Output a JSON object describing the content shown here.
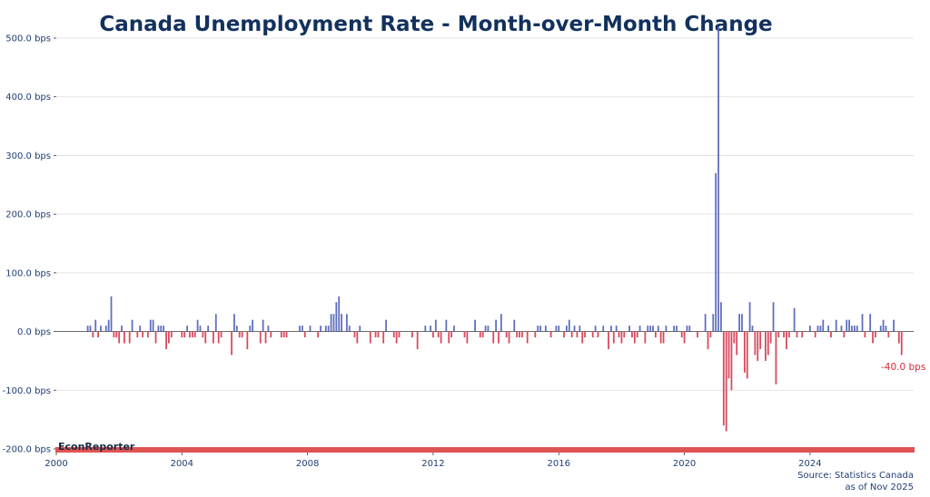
{
  "colors": {
    "positive": "#5f6fbd",
    "negative": "#d84a5c",
    "grid": "#dcdcdc",
    "baseline": "#555555",
    "brandBar": "#e05353",
    "title": "#12315e"
  },
  "brand": "EconReporter",
  "source": {
    "line1": "Source: Statistics Canada",
    "line2": "as of Nov 2025"
  },
  "chart_data": {
    "type": "bar",
    "title": "Canada Unemployment Rate - Month-over-Month Change",
    "xlabel": "",
    "ylabel": "",
    "ylim": [
      -200,
      500
    ],
    "xlim": [
      2000.0,
      2027.3
    ],
    "y_ticks": [
      -200,
      -100,
      0,
      100,
      200,
      300,
      400,
      500
    ],
    "y_tick_labels": [
      "-200.0 bps",
      "-100.0 bps",
      "0.0 bps",
      "100.0 bps",
      "200.0 bps",
      "300.0 bps",
      "400.0 bps",
      "500.0 bps"
    ],
    "x_ticks": [
      2000,
      2004,
      2008,
      2012,
      2016,
      2020,
      2024
    ],
    "x_tick_labels": [
      "2000",
      "2004",
      "2008",
      "2012",
      "2016",
      "2020",
      "2024"
    ],
    "last_label": "-40.0 bps",
    "start": "2001-01",
    "values": [
      10,
      10,
      -10,
      20,
      -10,
      10,
      0,
      10,
      20,
      60,
      -10,
      -10,
      -20,
      10,
      -20,
      0,
      -20,
      20,
      0,
      -10,
      10,
      -10,
      0,
      -10,
      20,
      20,
      -20,
      10,
      10,
      10,
      -30,
      -20,
      -10,
      0,
      0,
      0,
      -10,
      -10,
      10,
      -10,
      -10,
      -10,
      20,
      10,
      -10,
      -20,
      10,
      0,
      -20,
      30,
      -20,
      -10,
      0,
      0,
      0,
      -40,
      30,
      10,
      -10,
      -10,
      0,
      -30,
      10,
      20,
      0,
      0,
      -20,
      20,
      -20,
      10,
      -10,
      0,
      0,
      0,
      -10,
      -10,
      -10,
      0,
      0,
      0,
      0,
      10,
      10,
      -10,
      0,
      10,
      0,
      0,
      -10,
      10,
      0,
      10,
      10,
      30,
      30,
      50,
      60,
      30,
      0,
      30,
      10,
      0,
      -10,
      -20,
      10,
      0,
      0,
      0,
      -20,
      0,
      -10,
      -10,
      0,
      -20,
      20,
      0,
      0,
      -10,
      -20,
      -10,
      0,
      0,
      0,
      0,
      -10,
      0,
      -30,
      0,
      0,
      10,
      0,
      10,
      -10,
      20,
      -10,
      -20,
      0,
      20,
      -20,
      -10,
      10,
      0,
      0,
      0,
      -10,
      -20,
      0,
      0,
      20,
      0,
      -10,
      -10,
      10,
      10,
      0,
      -20,
      20,
      -20,
      30,
      0,
      -10,
      -20,
      0,
      20,
      -10,
      -10,
      -10,
      0,
      -20,
      0,
      0,
      -10,
      10,
      10,
      0,
      10,
      0,
      -10,
      0,
      10,
      10,
      0,
      -10,
      10,
      20,
      -10,
      10,
      -10,
      10,
      -20,
      -10,
      0,
      0,
      -10,
      10,
      -10,
      0,
      10,
      0,
      -30,
      10,
      -20,
      10,
      -10,
      -20,
      -10,
      0,
      10,
      -10,
      -20,
      -10,
      10,
      0,
      -20,
      10,
      10,
      10,
      -10,
      10,
      -20,
      -20,
      10,
      0,
      0,
      10,
      10,
      0,
      -10,
      -20,
      10,
      10,
      0,
      0,
      -10,
      0,
      0,
      30,
      -30,
      -10,
      30,
      270,
      520,
      50,
      -160,
      -170,
      -80,
      -100,
      -20,
      -40,
      30,
      30,
      -70,
      -80,
      50,
      10,
      -40,
      -50,
      -30,
      0,
      -50,
      -40,
      -20,
      50,
      -90,
      -10,
      0,
      -10,
      -30,
      -10,
      0,
      40,
      -10,
      0,
      -10,
      0,
      0,
      10,
      0,
      -10,
      10,
      10,
      20,
      0,
      10,
      -10,
      0,
      20,
      0,
      10,
      -10,
      20,
      20,
      10,
      10,
      10,
      0,
      30,
      -10,
      0,
      30,
      -20,
      -10,
      0,
      10,
      20,
      10,
      -10,
      0,
      20,
      0,
      -20,
      -40
    ]
  }
}
